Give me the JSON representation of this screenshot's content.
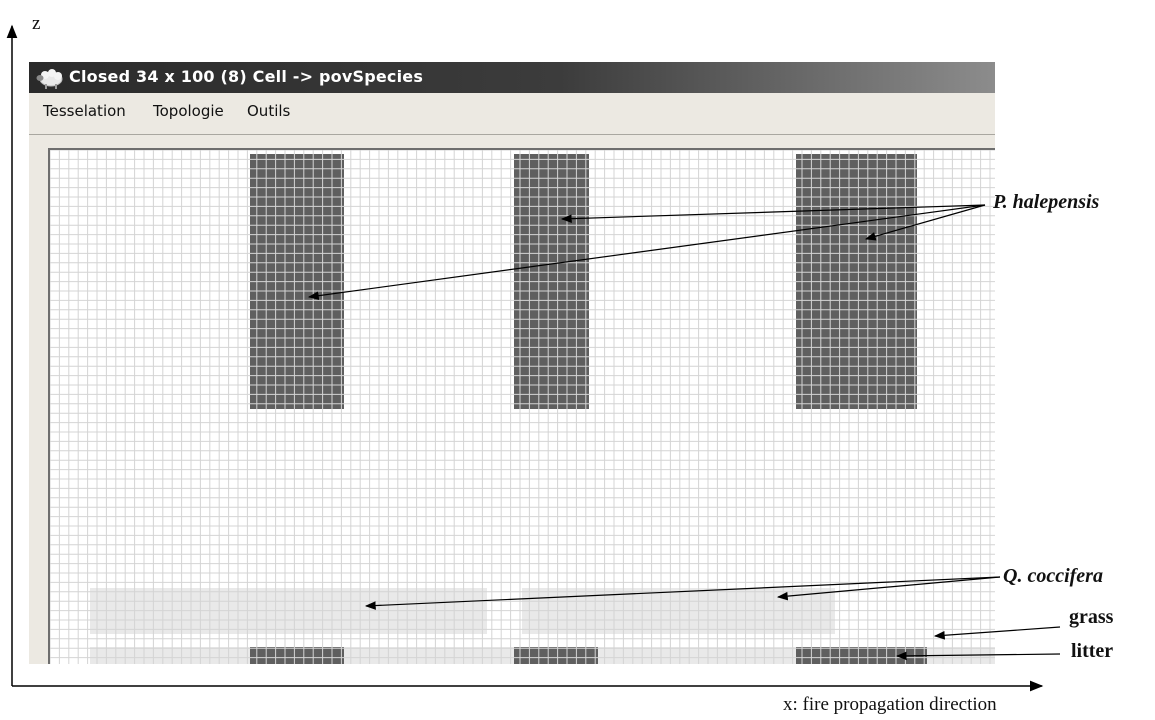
{
  "window": {
    "title": "Closed 34 x 100 (8)  Cell -> povSpecies",
    "title_bar_color": "#303030",
    "app_icon": "sheep-icon"
  },
  "menubar": {
    "items": [
      "Tesselation",
      "Topologie",
      "Outils"
    ]
  },
  "colors": {
    "grid_line": "#d4d4d4",
    "empty_cell": "#ffffff",
    "pine_cell": "#5f5f5f",
    "oak_region": "#e9e9e9"
  },
  "annotations": {
    "pine": "P. halepensis",
    "oak": "Q. coccifera",
    "grass": "grass",
    "litter": "litter"
  },
  "axes": {
    "z_label": "z",
    "x_label": "x: fire propagation direction"
  }
}
